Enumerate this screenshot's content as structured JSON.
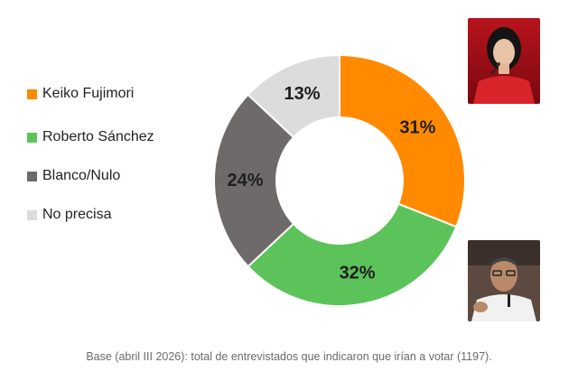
{
  "chart_data": {
    "type": "pie",
    "donut": true,
    "title": "",
    "legend_position": "left",
    "series": [
      {
        "name": "Keiko Fujimori",
        "value": 31,
        "label": "31%",
        "color": "#ff8a00"
      },
      {
        "name": "Roberto Sánchez",
        "value": 32,
        "label": "32%",
        "color": "#5cc35a"
      },
      {
        "name": "Blanco/Nulo",
        "value": 24,
        "label": "24%",
        "color": "#6f6a6a"
      },
      {
        "name": "No precisa",
        "value": 13,
        "label": "13%",
        "color": "#dcdcdc"
      }
    ]
  },
  "legend": [
    {
      "label": "Keiko Fujimori",
      "color": "#ff8a00"
    },
    {
      "label": "Roberto Sánchez",
      "color": "#5cc35a"
    },
    {
      "label": "Blanco/Nulo",
      "color": "#6f6a6a"
    },
    {
      "label": "No precisa",
      "color": "#dcdcdc"
    }
  ],
  "footer": {
    "note": "Base (abril III 2026): total de entrevistados que indicaron que irían a votar (1197)."
  }
}
